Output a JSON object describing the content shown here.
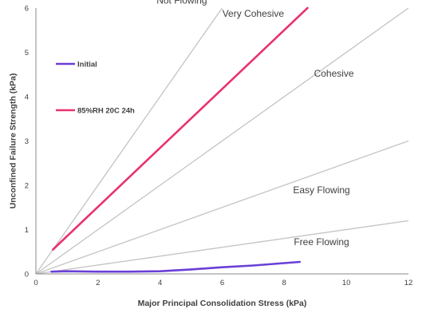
{
  "chart_data": {
    "type": "line",
    "xlabel": "Major Principal Consolidation Stress (kPa)",
    "ylabel": "Unconfined Failure Strength (kPa)",
    "xlim": [
      0,
      12
    ],
    "ylim": [
      0,
      6
    ],
    "xticks": [
      0,
      2,
      4,
      6,
      8,
      10,
      12
    ],
    "yticks": [
      0,
      1,
      2,
      3,
      4,
      5,
      6
    ],
    "grid": false,
    "legend_position": "left",
    "series": [
      {
        "name": "Initial",
        "color": "#6a3fd6",
        "x": [
          0.5,
          1.0,
          2.0,
          3.0,
          4.0,
          5.0,
          6.0,
          7.0,
          8.5
        ],
        "y": [
          0.05,
          0.06,
          0.05,
          0.05,
          0.06,
          0.1,
          0.15,
          0.19,
          0.27
        ]
      },
      {
        "name": "85%RH 20C 24h",
        "color": "#e8336d",
        "x": [
          0.55,
          8.75
        ],
        "y": [
          0.55,
          6.0
        ]
      }
    ],
    "reference_lines": [
      {
        "label": "Not Flowing",
        "slope": 1.0
      },
      {
        "label": "Very Cohesive",
        "slope": 0.5
      },
      {
        "label": "Cohesive",
        "slope": 0.25
      },
      {
        "label": "Easy Flowing",
        "slope": 0.1
      }
    ],
    "reference_color": "#c4c4c4",
    "region_labels": [
      {
        "label": "Not Flowing",
        "x": 4.7,
        "y": 6.1
      },
      {
        "label": "Very Cohesive",
        "x": 7.0,
        "y": 5.8
      },
      {
        "label": "Cohesive",
        "x": 9.6,
        "y": 4.45
      },
      {
        "label": "Easy Flowing",
        "x": 9.2,
        "y": 1.82
      },
      {
        "label": "Free Flowing",
        "x": 9.2,
        "y": 0.65
      }
    ]
  }
}
